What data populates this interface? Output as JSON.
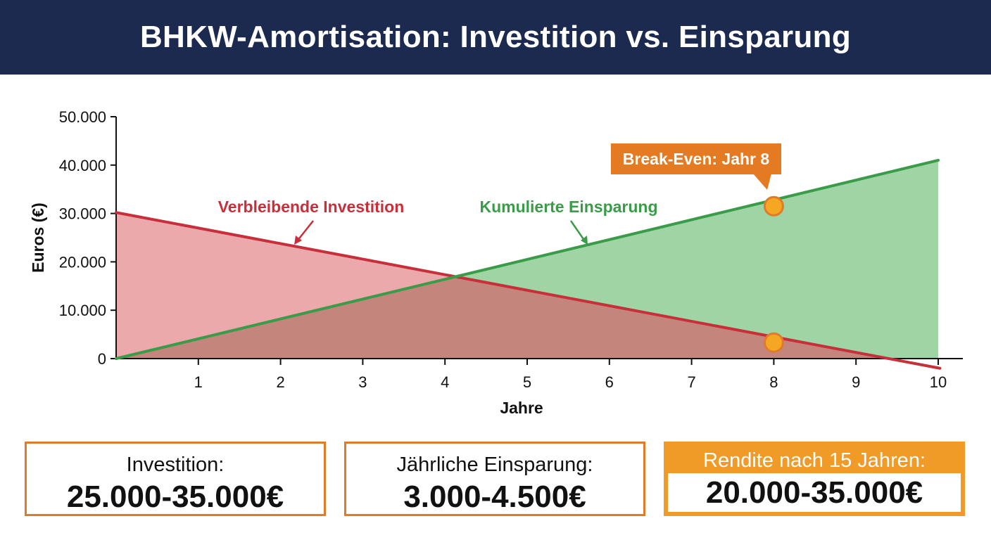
{
  "header": {
    "title": "BHKW-Amortisation: Investition vs. Einsparung"
  },
  "chart_data": {
    "type": "area",
    "xlabel": "Jahre",
    "ylabel": "Euros (€)",
    "xlim": [
      0,
      10
    ],
    "ylim": [
      0,
      50000
    ],
    "x_ticks": [
      1,
      2,
      3,
      4,
      5,
      6,
      7,
      8,
      9,
      10
    ],
    "y_ticks": [
      0,
      10000,
      20000,
      30000,
      40000,
      50000
    ],
    "y_tick_labels": [
      "0",
      "10.000",
      "20.000",
      "30.000",
      "40.000",
      "50.000"
    ],
    "grid": false,
    "series": [
      {
        "name": "Verbleibende Investition",
        "color": "#c7303a",
        "fill": "#e79a9e",
        "x": [
          0,
          10.02
        ],
        "y": [
          30200,
          -2000
        ]
      },
      {
        "name": "Kumulierte Einsparung",
        "color": "#3a9b48",
        "fill": "#9fd5a4",
        "x": [
          0,
          10
        ],
        "y": [
          0,
          41000
        ]
      }
    ],
    "annotations": [
      {
        "text": "Break-Even: Jahr 8",
        "x": 8,
        "y": 31500,
        "color": "#e47a22"
      }
    ],
    "markers": [
      {
        "x": 8,
        "y": 31500,
        "color": "#f5a623"
      },
      {
        "x": 8,
        "y": 3300,
        "color": "#f5a623"
      }
    ]
  },
  "cards": [
    {
      "label": "Investition:",
      "value": "25.000-35.000€"
    },
    {
      "label": "Jährliche Einsparung:",
      "value": "3.000-4.500€"
    },
    {
      "label": "Rendite nach 15 Jahren:",
      "value": "20.000-35.000€"
    }
  ]
}
